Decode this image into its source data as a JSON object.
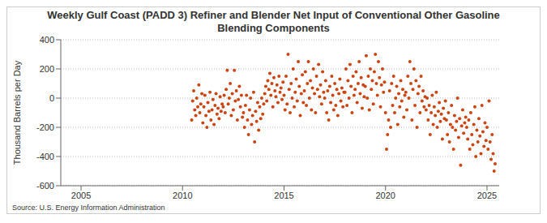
{
  "chart_data": {
    "type": "scatter",
    "title": "Weekly Gulf Coast (PADD 3) Refiner and Blender Net Input of Conventional Other Gasoline Blending Components",
    "y_label": "Thousand Barrels per Day",
    "source": "Source: U.S. Energy Information Administration",
    "color": "#cc4411",
    "marker": "circle",
    "grid": true,
    "xlim": [
      2004,
      2025.6
    ],
    "xticks": [
      2005,
      2010,
      2015,
      2020,
      2025
    ],
    "ylim": [
      -600,
      400
    ],
    "yticks": [
      -600,
      -400,
      -200,
      0,
      200,
      400
    ],
    "x": [
      2010.45,
      2010.5,
      2010.55,
      2010.6,
      2010.65,
      2010.7,
      2010.75,
      2010.8,
      2010.85,
      2010.9,
      2010.95,
      2011.0,
      2011.05,
      2011.1,
      2011.15,
      2011.2,
      2011.25,
      2011.3,
      2011.35,
      2011.4,
      2011.45,
      2011.5,
      2011.55,
      2011.6,
      2011.65,
      2011.7,
      2011.75,
      2011.8,
      2011.85,
      2011.9,
      2011.95,
      2012.0,
      2012.05,
      2012.1,
      2012.15,
      2012.2,
      2012.25,
      2012.3,
      2012.35,
      2012.4,
      2012.45,
      2012.5,
      2012.55,
      2012.6,
      2012.65,
      2012.7,
      2012.75,
      2012.8,
      2012.85,
      2012.9,
      2012.95,
      2013.0,
      2013.05,
      2013.1,
      2013.15,
      2013.2,
      2013.25,
      2013.3,
      2013.35,
      2013.4,
      2013.45,
      2013.5,
      2013.55,
      2013.6,
      2013.65,
      2013.7,
      2013.75,
      2013.8,
      2013.85,
      2013.9,
      2013.95,
      2014.0,
      2014.05,
      2014.1,
      2014.15,
      2014.2,
      2014.25,
      2014.3,
      2014.35,
      2014.4,
      2014.45,
      2014.5,
      2014.55,
      2014.6,
      2014.65,
      2014.7,
      2014.75,
      2014.8,
      2014.85,
      2014.9,
      2014.95,
      2015.0,
      2015.05,
      2015.1,
      2015.15,
      2015.2,
      2015.25,
      2015.3,
      2015.35,
      2015.4,
      2015.45,
      2015.5,
      2015.55,
      2015.6,
      2015.65,
      2015.7,
      2015.75,
      2015.8,
      2015.85,
      2015.9,
      2015.95,
      2016.0,
      2016.05,
      2016.1,
      2016.15,
      2016.2,
      2016.25,
      2016.3,
      2016.35,
      2016.4,
      2016.45,
      2016.5,
      2016.55,
      2016.6,
      2016.65,
      2016.7,
      2016.75,
      2016.8,
      2016.85,
      2016.9,
      2016.95,
      2017.0,
      2017.05,
      2017.1,
      2017.15,
      2017.2,
      2017.25,
      2017.3,
      2017.35,
      2017.4,
      2017.45,
      2017.5,
      2017.55,
      2017.6,
      2017.65,
      2017.7,
      2017.75,
      2017.8,
      2017.85,
      2017.9,
      2017.95,
      2018.0,
      2018.05,
      2018.1,
      2018.15,
      2018.2,
      2018.25,
      2018.3,
      2018.35,
      2018.4,
      2018.45,
      2018.5,
      2018.55,
      2018.6,
      2018.65,
      2018.7,
      2018.75,
      2018.8,
      2018.85,
      2018.9,
      2018.95,
      2019.0,
      2019.05,
      2019.1,
      2019.15,
      2019.2,
      2019.25,
      2019.3,
      2019.35,
      2019.4,
      2019.45,
      2019.5,
      2019.55,
      2019.6,
      2019.65,
      2019.7,
      2019.75,
      2019.8,
      2019.85,
      2019.9,
      2019.95,
      2020.0,
      2020.05,
      2020.1,
      2020.15,
      2020.2,
      2020.25,
      2020.3,
      2020.35,
      2020.4,
      2020.45,
      2020.5,
      2020.55,
      2020.6,
      2020.65,
      2020.7,
      2020.75,
      2020.8,
      2020.85,
      2020.9,
      2020.95,
      2021.0,
      2021.05,
      2021.1,
      2021.15,
      2021.2,
      2021.25,
      2021.3,
      2021.35,
      2021.4,
      2021.45,
      2021.5,
      2021.55,
      2021.6,
      2021.65,
      2021.7,
      2021.75,
      2021.8,
      2021.85,
      2021.9,
      2021.95,
      2022.0,
      2022.05,
      2022.1,
      2022.15,
      2022.2,
      2022.25,
      2022.3,
      2022.35,
      2022.4,
      2022.45,
      2022.5,
      2022.55,
      2022.6,
      2022.65,
      2022.7,
      2022.75,
      2022.8,
      2022.85,
      2022.9,
      2022.95,
      2023.0,
      2023.05,
      2023.1,
      2023.15,
      2023.2,
      2023.25,
      2023.3,
      2023.35,
      2023.4,
      2023.45,
      2023.5,
      2023.55,
      2023.6,
      2023.65,
      2023.7,
      2023.75,
      2023.8,
      2023.85,
      2023.9,
      2023.95,
      2024.0,
      2024.05,
      2024.1,
      2024.15,
      2024.2,
      2024.25,
      2024.3,
      2024.35,
      2024.4,
      2024.45,
      2024.5,
      2024.55,
      2024.6,
      2024.65,
      2024.7,
      2024.75,
      2024.8,
      2024.85,
      2024.9,
      2024.95,
      2025.0,
      2025.05,
      2025.1,
      2025.15,
      2025.2,
      2025.25,
      2025.3,
      2025.35,
      2025.4
    ],
    "values": [
      -150,
      -20,
      50,
      -80,
      -120,
      0,
      -60,
      90,
      -100,
      -40,
      30,
      -170,
      -60,
      20,
      -120,
      -200,
      -30,
      -90,
      40,
      -150,
      -80,
      -10,
      -180,
      -50,
      30,
      -110,
      -70,
      -140,
      10,
      -90,
      -40,
      -60,
      20,
      -100,
      60,
      190,
      -40,
      0,
      100,
      -120,
      30,
      -80,
      190,
      -20,
      50,
      -150,
      -10,
      80,
      -60,
      20,
      -130,
      -100,
      -200,
      -50,
      20,
      -150,
      -250,
      -80,
      0,
      -180,
      -120,
      40,
      -300,
      -90,
      -160,
      -30,
      -220,
      -60,
      -140,
      0,
      -110,
      -40,
      30,
      80,
      -20,
      120,
      60,
      170,
      20,
      100,
      -60,
      140,
      50,
      10,
      90,
      -30,
      150,
      40,
      70,
      -10,
      110,
      20,
      -80,
      150,
      -40,
      300,
      60,
      -100,
      100,
      0,
      200,
      -60,
      40,
      130,
      -20,
      250,
      80,
      -120,
      30,
      160,
      -30,
      50,
      180,
      -50,
      100,
      250,
      0,
      120,
      -80,
      70,
      200,
      30,
      -100,
      150,
      60,
      230,
      10,
      90,
      -40,
      180,
      40,
      0,
      120,
      -100,
      50,
      -150,
      80,
      -30,
      150,
      20,
      -80,
      100,
      -50,
      60,
      -120,
      30,
      130,
      -20,
      70,
      -60,
      40,
      40,
      200,
      -50,
      120,
      0,
      230,
      80,
      -100,
      150,
      20,
      60,
      180,
      -30,
      100,
      250,
      30,
      140,
      -70,
      90,
      10,
      80,
      290,
      0,
      150,
      -80,
      200,
      60,
      120,
      -40,
      180,
      300,
      100,
      20,
      250,
      140,
      -60,
      90,
      200,
      40,
      110,
      -100,
      -350,
      -250,
      -150,
      50,
      -200,
      100,
      -50,
      150,
      -100,
      0,
      80,
      -180,
      30,
      -60,
      120,
      -20,
      60,
      -130,
      20,
      40,
      -80,
      150,
      0,
      250,
      100,
      -150,
      60,
      200,
      -50,
      120,
      -200,
      30,
      80,
      -100,
      150,
      -20,
      50,
      -60,
      10,
      -80,
      0,
      -150,
      -50,
      -250,
      -100,
      20,
      -180,
      -60,
      -120,
      40,
      -200,
      -90,
      -30,
      -160,
      -110,
      -280,
      -70,
      -140,
      -20,
      -150,
      -250,
      -100,
      -300,
      -180,
      -50,
      -200,
      -350,
      -120,
      -220,
      -160,
      0,
      -270,
      -140,
      -460,
      -190,
      -80,
      -240,
      -170,
      -130,
      -200,
      -280,
      -150,
      -350,
      -100,
      -250,
      -320,
      -180,
      -60,
      -400,
      -220,
      -300,
      -140,
      -260,
      -380,
      -50,
      -230,
      -330,
      -170,
      -290,
      -200,
      -350,
      -20,
      -300,
      -420,
      -250,
      -380,
      -500,
      -450
    ]
  }
}
